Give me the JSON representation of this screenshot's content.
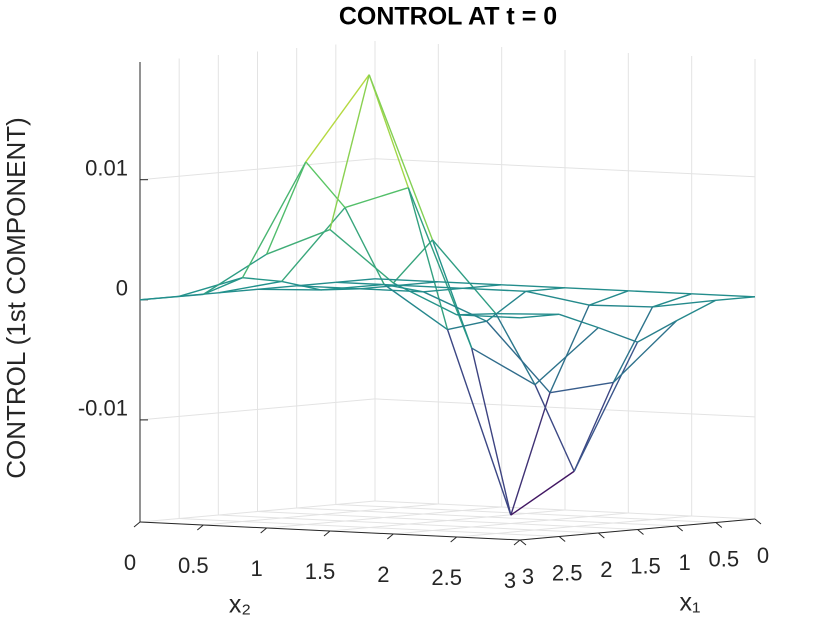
{
  "chart_data": {
    "type": "surface",
    "title": "CONTROL AT t = 0",
    "xlabel": "x₁",
    "ylabel": "x₂",
    "zlabel": "CONTROL (1st COMPONENT)",
    "x": [
      0,
      0.5,
      1,
      1.5,
      2,
      2.5,
      3
    ],
    "y": [
      0,
      0.5,
      1,
      1.5,
      2,
      2.5,
      3
    ],
    "z": [
      [
        0,
        0,
        0,
        0,
        0,
        0,
        0
      ],
      [
        0,
        0,
        0,
        0,
        -0.0009,
        -0.0008,
        0
      ],
      [
        0,
        0,
        0,
        -0.0022,
        -0.0079,
        -0.0068,
        -0.0014
      ],
      [
        0,
        0.0002,
        0.0009,
        -0.0026,
        -0.0178,
        -0.0139,
        -0.0029
      ],
      [
        0,
        0.0012,
        0.0076,
        0.0095,
        -0.0036,
        -0.0064,
        -0.0014
      ],
      [
        0,
        0.0018,
        0.0117,
        0.0192,
        0.0057,
        -0.0002,
        0
      ],
      [
        0,
        0.0007,
        0.0043,
        0.0066,
        0.0024,
        0,
        0
      ]
    ],
    "xlim": [
      0,
      3
    ],
    "ylim": [
      0,
      3
    ],
    "zlim": [
      -0.0185,
      0.0198
    ],
    "xticks": [
      0,
      0.5,
      1,
      1.5,
      2,
      2.5,
      3
    ],
    "yticks": [
      0,
      0.5,
      1,
      1.5,
      2,
      2.5,
      3
    ],
    "zticks": [
      -0.01,
      0,
      0.01
    ],
    "grid": true,
    "colormap": [
      "#440154",
      "#3b528b",
      "#21918c",
      "#5ec962",
      "#fde725"
    ]
  }
}
